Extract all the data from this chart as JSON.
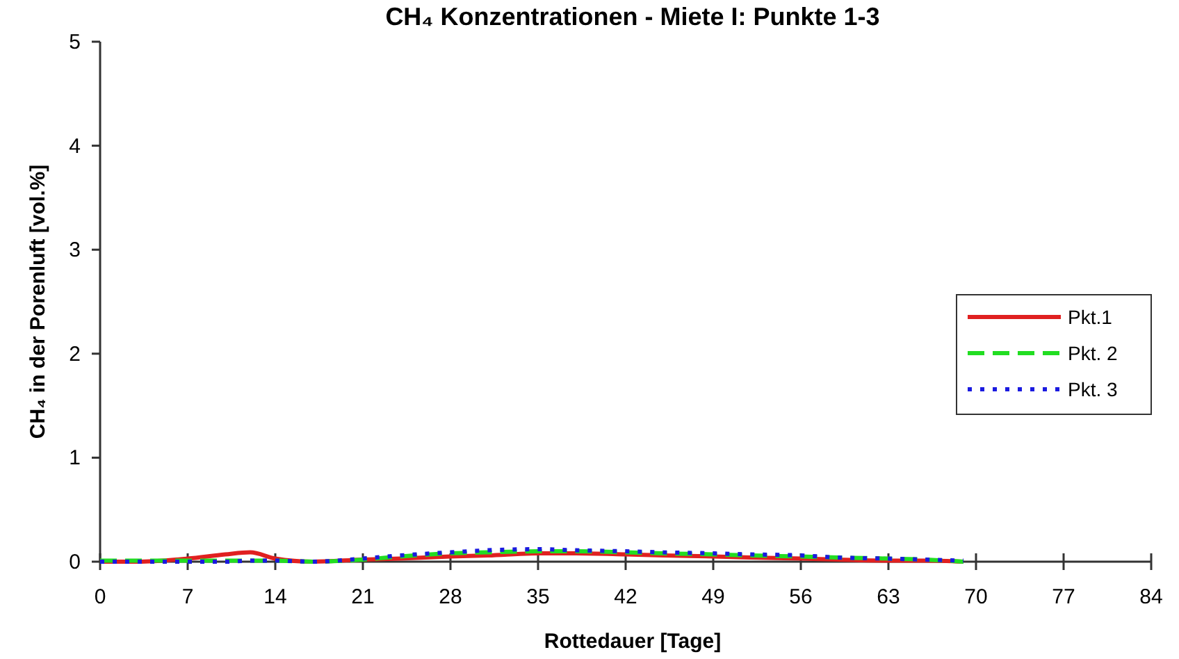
{
  "chart_data": {
    "type": "line",
    "title": "CH₄ Konzentrationen - Miete I: Punkte 1-3",
    "xlabel": "Rottedauer [Tage]",
    "ylabel": "CH₄ in der Porenluft [vol.%]",
    "x": [
      0,
      3,
      7,
      10,
      12,
      14,
      17,
      21,
      24,
      28,
      31,
      35,
      38,
      42,
      45,
      49,
      52,
      56,
      59,
      63,
      66,
      69
    ],
    "series": [
      {
        "name": "Pkt.1",
        "color": "#e02020",
        "line_style": "solid",
        "values": [
          0,
          0,
          0.03,
          0.07,
          0.09,
          0.03,
          0,
          0.02,
          0.03,
          0.05,
          0.06,
          0.08,
          0.08,
          0.07,
          0.06,
          0.05,
          0.04,
          0.03,
          0.02,
          0.01,
          0.01,
          0
        ]
      },
      {
        "name": "Pkt. 2",
        "color": "#22dd22",
        "line_style": "dashed",
        "values": [
          0.01,
          0.01,
          0.01,
          0.01,
          0.01,
          0.01,
          0,
          0.02,
          0.05,
          0.08,
          0.09,
          0.1,
          0.1,
          0.09,
          0.08,
          0.07,
          0.06,
          0.05,
          0.04,
          0.03,
          0.02,
          0
        ]
      },
      {
        "name": "Pkt. 3",
        "color": "#1a1ae0",
        "line_style": "dotted",
        "values": [
          0,
          0,
          0,
          0,
          0.01,
          0.01,
          0,
          0.03,
          0.06,
          0.09,
          0.11,
          0.12,
          0.11,
          0.1,
          0.09,
          0.08,
          0.07,
          0.06,
          0.04,
          0.03,
          0.02,
          0.01
        ]
      }
    ],
    "xlim": [
      0,
      84
    ],
    "xticks": [
      0,
      7,
      14,
      21,
      28,
      35,
      42,
      49,
      56,
      63,
      70,
      77,
      84
    ],
    "ylim": [
      0,
      5
    ],
    "yticks": [
      0,
      1,
      2,
      3,
      4,
      5
    ],
    "grid": false,
    "legend": "right"
  }
}
